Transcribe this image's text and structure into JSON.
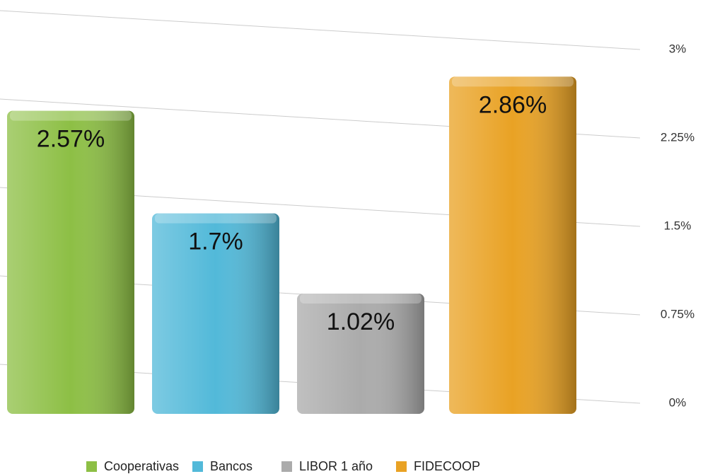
{
  "chart_data": {
    "type": "bar",
    "categories": [
      "Cooperativas",
      "Bancos",
      "LIBOR 1 año",
      "FIDECOOP"
    ],
    "values": [
      2.57,
      1.7,
      1.02,
      2.86
    ],
    "value_labels": [
      "2.57%",
      "1.7%",
      "1.02%",
      "2.86%"
    ],
    "colors": [
      "#8dbf45",
      "#52b9d9",
      "#ababab",
      "#e9a224"
    ],
    "ylim": [
      0,
      3
    ],
    "yticks": [
      {
        "value": 0,
        "label": "0%"
      },
      {
        "value": 0.75,
        "label": "0.75%"
      },
      {
        "value": 1.5,
        "label": "1.5%"
      },
      {
        "value": 2.25,
        "label": "2.25%"
      },
      {
        "value": 3,
        "label": "3%"
      }
    ],
    "grid": true,
    "legend": "bottom"
  }
}
